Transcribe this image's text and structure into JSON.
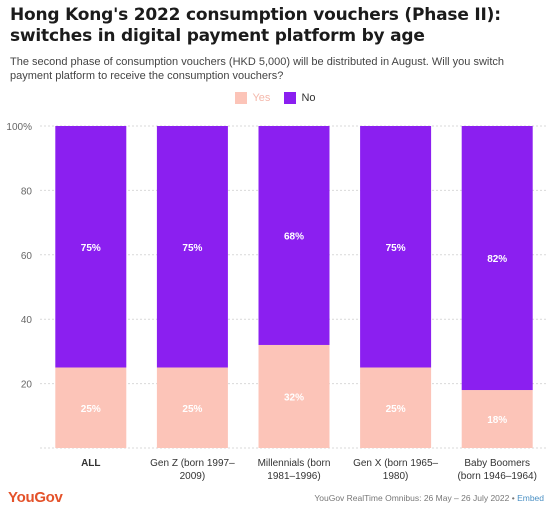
{
  "header": {
    "title": "Hong Kong's 2022 consumption vouchers (Phase II): switches in digital payment platform by age",
    "subtitle": "The second phase of consumption vouchers (HKD 5,000) will be distributed in August. Will you switch payment platform to receive the consumption vouchers?"
  },
  "footer": {
    "brand": "YouGov",
    "source": "YouGov RealTime Omnibus: 26 May – 26 July 2022 •",
    "embed": "Embed"
  },
  "chart_data": {
    "type": "bar",
    "stacked": true,
    "orientation": "vertical",
    "categories": [
      "ALL",
      "Gen Z (born 1997–2009)",
      "Millennials (born 1981–1996)",
      "Gen X (born 1965–1980)",
      "Baby Boomers (born 1946–1964)"
    ],
    "category_lines": [
      [
        "ALL"
      ],
      [
        "Gen Z (born 1997–",
        "2009)"
      ],
      [
        "Millennials (born",
        "1981–1996)"
      ],
      [
        "Gen X (born 1965–",
        "1980)"
      ],
      [
        "Baby Boomers",
        "(born 1946–1964)"
      ]
    ],
    "series": [
      {
        "name": "Yes",
        "color": "#fcc4b8",
        "values": [
          25,
          25,
          32,
          25,
          18
        ],
        "labels": [
          "25%",
          "25%",
          "32%",
          "25%",
          "18%"
        ]
      },
      {
        "name": "No",
        "color": "#8b1ff0",
        "values": [
          75,
          75,
          68,
          75,
          82
        ],
        "labels": [
          "75%",
          "75%",
          "68%",
          "75%",
          "82%"
        ]
      }
    ],
    "ylim": [
      0,
      100
    ],
    "yticks": [
      0,
      20,
      40,
      60,
      80,
      100
    ],
    "ytick_labels": [
      "",
      "20",
      "40",
      "60",
      "80",
      "100%"
    ],
    "grid": true,
    "legend_position": "top-center"
  }
}
